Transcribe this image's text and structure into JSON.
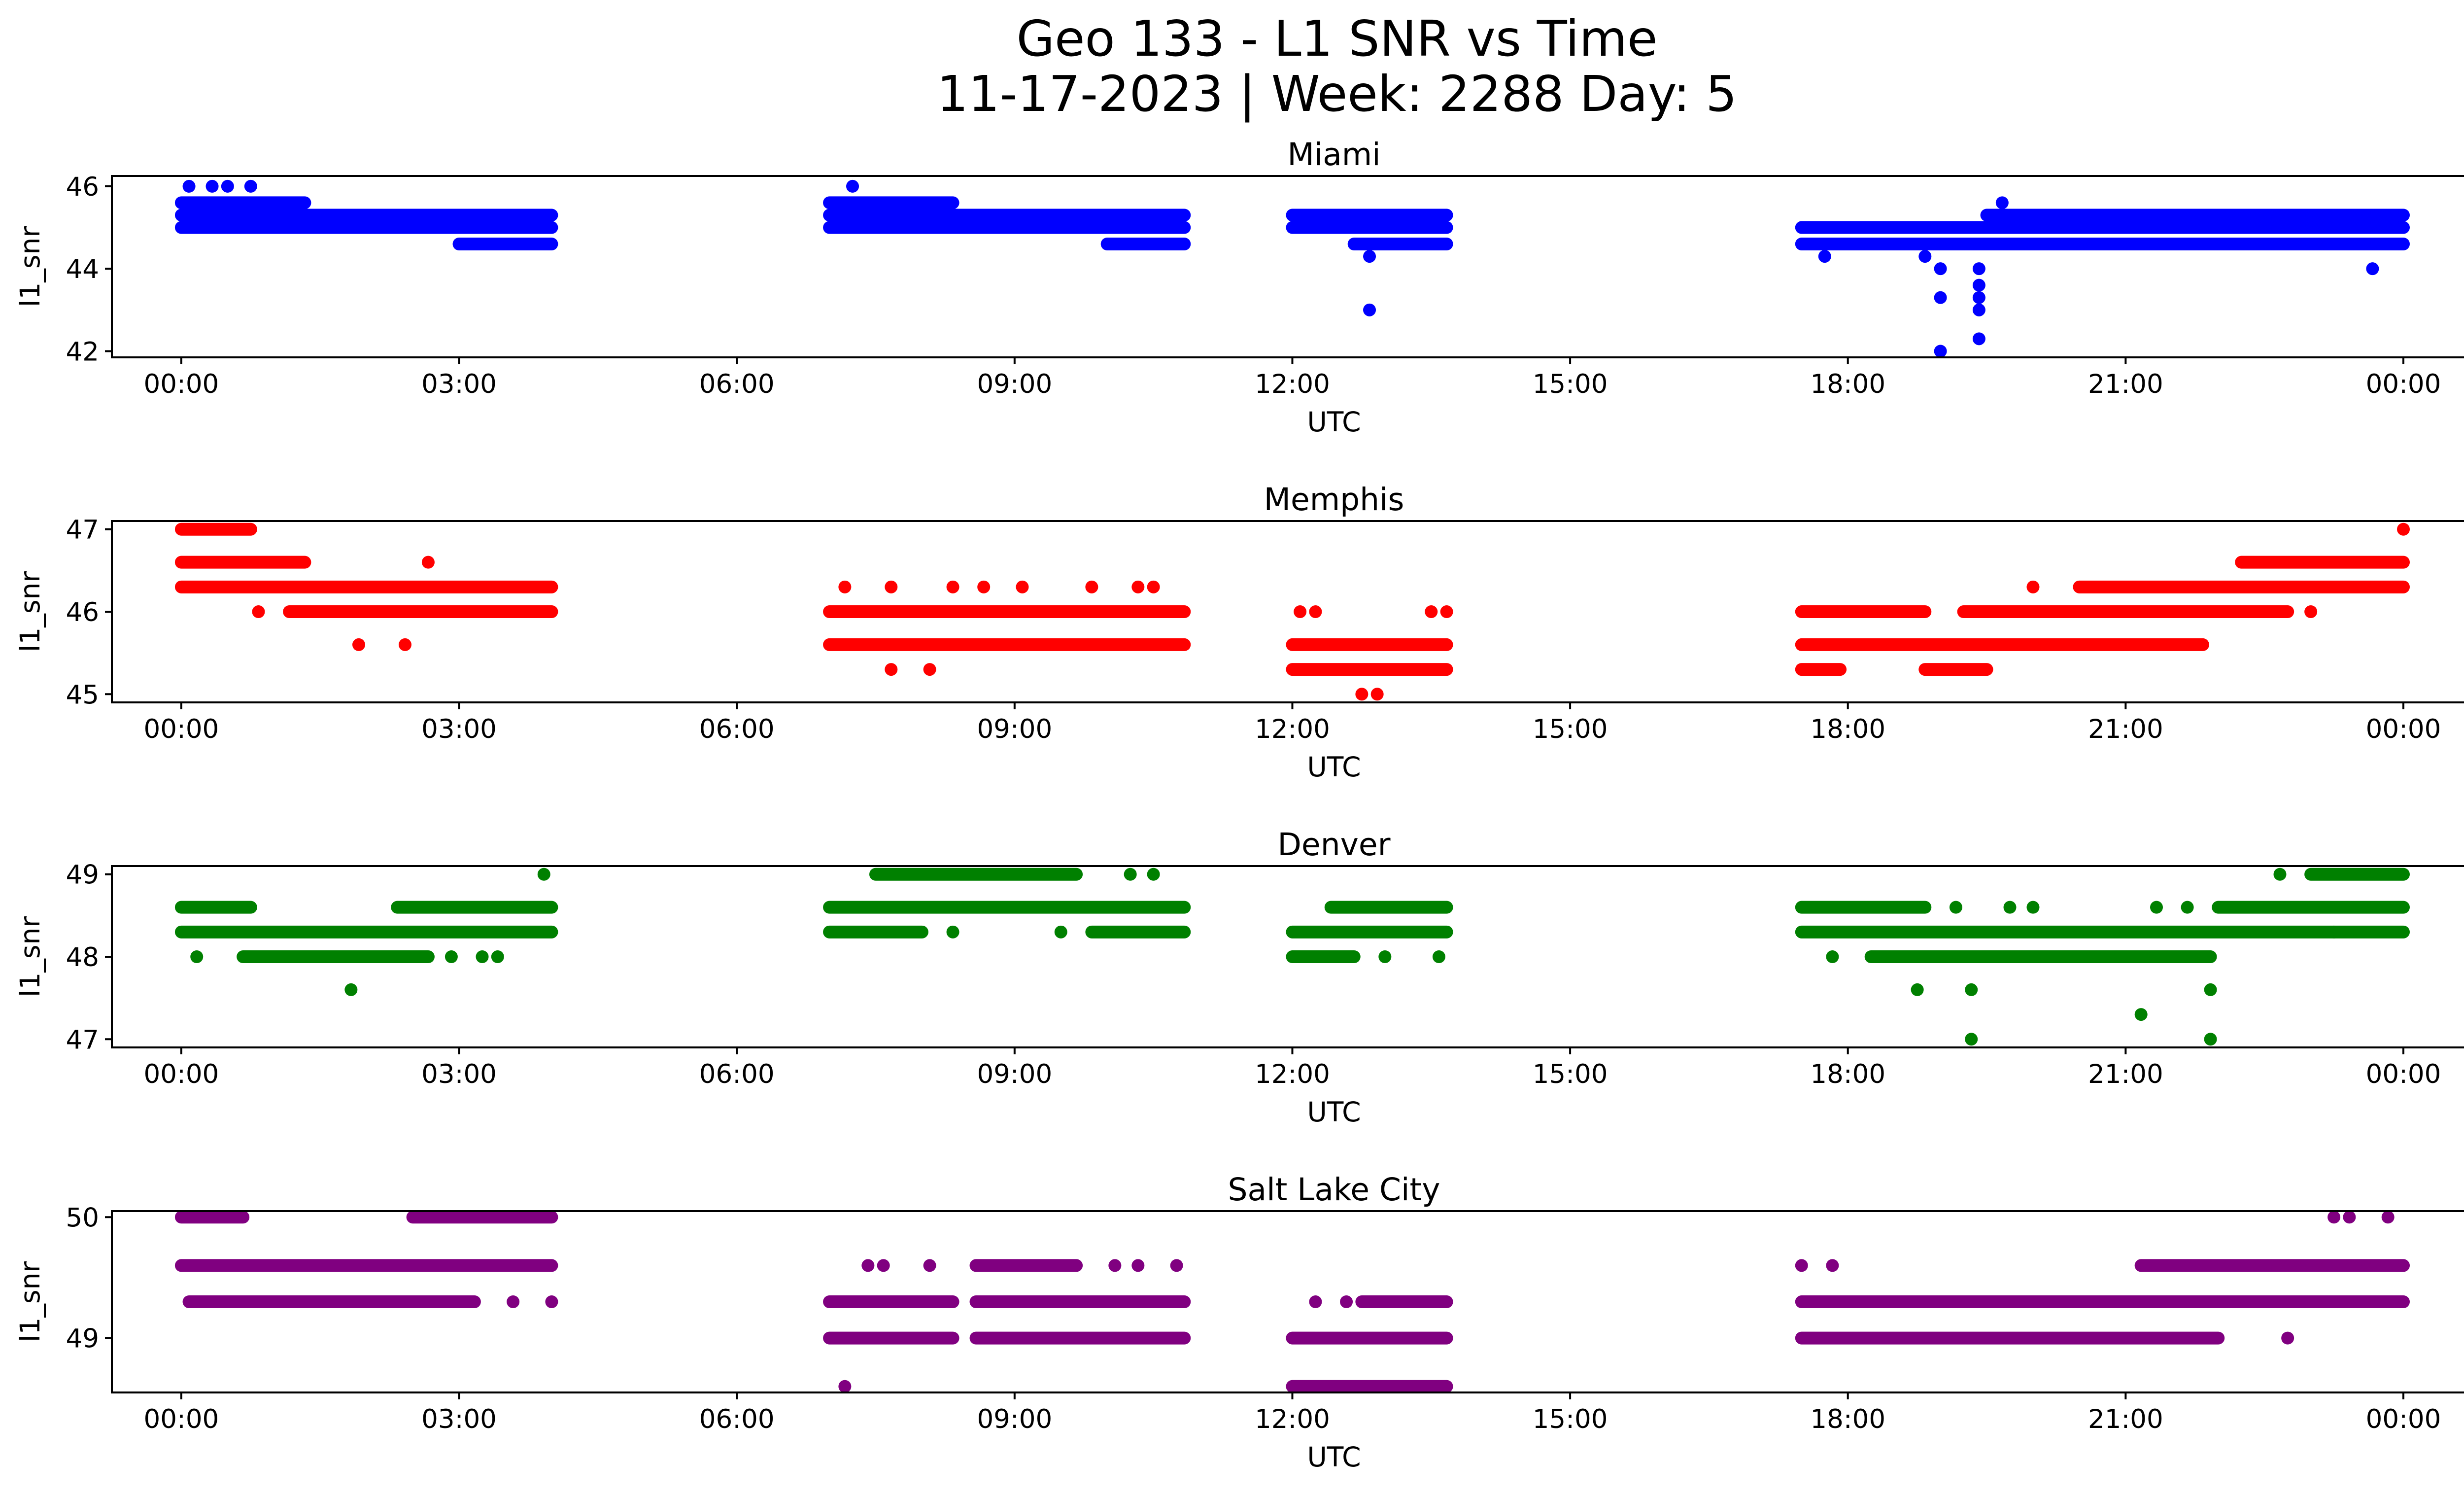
{
  "figure": {
    "title_line1": "Geo 133 - L1 SNR vs Time",
    "title_line2": "11-17-2023 | Week: 2288 Day: 5"
  },
  "chart_data": [
    {
      "type": "scatter",
      "title": "Miami",
      "xlabel": "UTC",
      "ylabel": "l1_snr",
      "color": "#0000ff",
      "xlim_hours": [
        -0.75,
        25.65
      ],
      "ylim": [
        41.85,
        46.25
      ],
      "x_ticks": [
        "00:00",
        "03:00",
        "06:00",
        "09:00",
        "12:00",
        "15:00",
        "18:00",
        "21:00",
        "00:00"
      ],
      "y_ticks": [
        42,
        44,
        46
      ],
      "bands": [
        {
          "x_start": "00:00",
          "x_end": "04:00",
          "y": 45.0
        },
        {
          "x_start": "00:00",
          "x_end": "04:00",
          "y": 45.3
        },
        {
          "x_start": "00:00",
          "x_end": "01:20",
          "y": 45.6
        },
        {
          "x_start": "03:00",
          "x_end": "04:00",
          "y": 44.6
        },
        {
          "x_start": "07:00",
          "x_end": "08:20",
          "y": 45.6
        },
        {
          "x_start": "07:00",
          "x_end": "10:50",
          "y": 45.3
        },
        {
          "x_start": "07:00",
          "x_end": "10:50",
          "y": 45.0
        },
        {
          "x_start": "10:00",
          "x_end": "10:50",
          "y": 44.6
        },
        {
          "x_start": "12:00",
          "x_end": "13:40",
          "y": 45.3
        },
        {
          "x_start": "12:00",
          "x_end": "13:40",
          "y": 45.0
        },
        {
          "x_start": "12:40",
          "x_end": "13:40",
          "y": 44.6
        },
        {
          "x_start": "17:30",
          "x_end": "23:59",
          "y": 45.0
        },
        {
          "x_start": "17:30",
          "x_end": "23:59",
          "y": 44.6
        },
        {
          "x_start": "19:30",
          "x_end": "23:59",
          "y": 45.3
        }
      ],
      "points": [
        {
          "x": "00:05",
          "y": 46.0
        },
        {
          "x": "00:20",
          "y": 46.0
        },
        {
          "x": "00:30",
          "y": 46.0
        },
        {
          "x": "00:45",
          "y": 46.0
        },
        {
          "x": "12:50",
          "y": 44.3
        },
        {
          "x": "12:50",
          "y": 43.0
        },
        {
          "x": "18:50",
          "y": 44.3
        },
        {
          "x": "19:00",
          "y": 44.0
        },
        {
          "x": "19:00",
          "y": 43.3
        },
        {
          "x": "19:00",
          "y": 42.0
        },
        {
          "x": "19:25",
          "y": 44.0
        },
        {
          "x": "19:25",
          "y": 43.6
        },
        {
          "x": "19:25",
          "y": 43.3
        },
        {
          "x": "19:25",
          "y": 43.0
        },
        {
          "x": "19:25",
          "y": 42.3
        },
        {
          "x": "19:40",
          "y": 45.6
        },
        {
          "x": "23:40",
          "y": 44.0
        },
        {
          "x": "17:45",
          "y": 44.3
        },
        {
          "x": "07:15",
          "y": 46.0
        }
      ]
    },
    {
      "type": "scatter",
      "title": "Memphis",
      "xlabel": "UTC",
      "ylabel": "l1_snr",
      "color": "#ff0000",
      "xlim_hours": [
        -0.75,
        25.65
      ],
      "ylim": [
        44.9,
        47.1
      ],
      "x_ticks": [
        "00:00",
        "03:00",
        "06:00",
        "09:00",
        "12:00",
        "15:00",
        "18:00",
        "21:00",
        "00:00"
      ],
      "y_ticks": [
        45,
        46,
        47
      ],
      "bands": [
        {
          "x_start": "00:00",
          "x_end": "00:45",
          "y": 47.0
        },
        {
          "x_start": "00:00",
          "x_end": "01:20",
          "y": 46.6
        },
        {
          "x_start": "00:00",
          "x_end": "04:00",
          "y": 46.3
        },
        {
          "x_start": "01:10",
          "x_end": "04:00",
          "y": 46.0
        },
        {
          "x_start": "07:00",
          "x_end": "10:50",
          "y": 46.0
        },
        {
          "x_start": "07:00",
          "x_end": "10:50",
          "y": 45.6
        },
        {
          "x_start": "12:00",
          "x_end": "13:40",
          "y": 45.6
        },
        {
          "x_start": "12:00",
          "x_end": "13:40",
          "y": 45.3
        },
        {
          "x_start": "17:30",
          "x_end": "21:50",
          "y": 45.6
        },
        {
          "x_start": "17:30",
          "x_end": "18:50",
          "y": 46.0
        },
        {
          "x_start": "19:15",
          "x_end": "22:45",
          "y": 46.0
        },
        {
          "x_start": "20:30",
          "x_end": "23:59",
          "y": 46.3
        },
        {
          "x_start": "22:15",
          "x_end": "23:59",
          "y": 46.6
        },
        {
          "x_start": "18:50",
          "x_end": "19:30",
          "y": 45.3
        },
        {
          "x_start": "17:30",
          "x_end": "17:55",
          "y": 45.3
        }
      ],
      "points": [
        {
          "x": "00:50",
          "y": 46.0
        },
        {
          "x": "01:55",
          "y": 45.6
        },
        {
          "x": "02:25",
          "y": 45.6
        },
        {
          "x": "02:40",
          "y": 46.6
        },
        {
          "x": "07:10",
          "y": 46.3
        },
        {
          "x": "07:40",
          "y": 46.3
        },
        {
          "x": "07:40",
          "y": 45.3
        },
        {
          "x": "08:05",
          "y": 45.3
        },
        {
          "x": "08:20",
          "y": 46.3
        },
        {
          "x": "08:40",
          "y": 46.3
        },
        {
          "x": "09:05",
          "y": 46.3
        },
        {
          "x": "09:50",
          "y": 46.3
        },
        {
          "x": "10:20",
          "y": 46.3
        },
        {
          "x": "10:30",
          "y": 46.3
        },
        {
          "x": "12:05",
          "y": 46.0
        },
        {
          "x": "12:15",
          "y": 46.0
        },
        {
          "x": "13:30",
          "y": 46.0
        },
        {
          "x": "13:40",
          "y": 46.0
        },
        {
          "x": "12:45",
          "y": 45.0
        },
        {
          "x": "12:55",
          "y": 45.0
        },
        {
          "x": "20:00",
          "y": 46.3
        },
        {
          "x": "23:00",
          "y": 46.0
        },
        {
          "x": "23:59",
          "y": 47.0
        }
      ]
    },
    {
      "type": "scatter",
      "title": "Denver",
      "xlabel": "UTC",
      "ylabel": "l1_snr",
      "color": "#008000",
      "xlim_hours": [
        -0.75,
        25.65
      ],
      "ylim": [
        46.9,
        49.1
      ],
      "x_ticks": [
        "00:00",
        "03:00",
        "06:00",
        "09:00",
        "12:00",
        "15:00",
        "18:00",
        "21:00",
        "00:00"
      ],
      "y_ticks": [
        47,
        48,
        49
      ],
      "bands": [
        {
          "x_start": "00:00",
          "x_end": "00:45",
          "y": 48.6
        },
        {
          "x_start": "00:00",
          "x_end": "04:00",
          "y": 48.3
        },
        {
          "x_start": "00:40",
          "x_end": "02:40",
          "y": 48.0
        },
        {
          "x_start": "02:20",
          "x_end": "04:00",
          "y": 48.6
        },
        {
          "x_start": "07:00",
          "x_end": "10:50",
          "y": 48.6
        },
        {
          "x_start": "07:00",
          "x_end": "08:00",
          "y": 48.3
        },
        {
          "x_start": "07:30",
          "x_end": "09:40",
          "y": 49.0
        },
        {
          "x_start": "09:50",
          "x_end": "10:50",
          "y": 48.3
        },
        {
          "x_start": "12:00",
          "x_end": "13:40",
          "y": 48.3
        },
        {
          "x_start": "12:25",
          "x_end": "13:40",
          "y": 48.6
        },
        {
          "x_start": "12:00",
          "x_end": "12:40",
          "y": 48.0
        },
        {
          "x_start": "17:30",
          "x_end": "18:50",
          "y": 48.6
        },
        {
          "x_start": "17:30",
          "x_end": "23:59",
          "y": 48.3
        },
        {
          "x_start": "18:15",
          "x_end": "21:55",
          "y": 48.0
        },
        {
          "x_start": "22:00",
          "x_end": "23:59",
          "y": 48.6
        },
        {
          "x_start": "23:00",
          "x_end": "23:59",
          "y": 49.0
        }
      ],
      "points": [
        {
          "x": "00:10",
          "y": 48.0
        },
        {
          "x": "01:50",
          "y": 47.6
        },
        {
          "x": "02:55",
          "y": 48.0
        },
        {
          "x": "03:15",
          "y": 48.0
        },
        {
          "x": "03:25",
          "y": 48.0
        },
        {
          "x": "03:55",
          "y": 49.0
        },
        {
          "x": "08:20",
          "y": 48.3
        },
        {
          "x": "09:30",
          "y": 48.3
        },
        {
          "x": "10:15",
          "y": 49.0
        },
        {
          "x": "10:30",
          "y": 49.0
        },
        {
          "x": "13:00",
          "y": 48.0
        },
        {
          "x": "13:35",
          "y": 48.0
        },
        {
          "x": "17:50",
          "y": 48.0
        },
        {
          "x": "18:45",
          "y": 47.6
        },
        {
          "x": "19:20",
          "y": 47.6
        },
        {
          "x": "19:20",
          "y": 47.0
        },
        {
          "x": "19:10",
          "y": 48.6
        },
        {
          "x": "19:45",
          "y": 48.6
        },
        {
          "x": "20:00",
          "y": 48.6
        },
        {
          "x": "21:10",
          "y": 47.3
        },
        {
          "x": "21:55",
          "y": 47.6
        },
        {
          "x": "21:55",
          "y": 47.0
        },
        {
          "x": "22:40",
          "y": 49.0
        },
        {
          "x": "23:15",
          "y": 48.3
        },
        {
          "x": "21:20",
          "y": 48.6
        },
        {
          "x": "21:40",
          "y": 48.6
        }
      ]
    },
    {
      "type": "scatter",
      "title": "Salt Lake City",
      "xlabel": "UTC",
      "ylabel": "l1_snr",
      "color": "#800080",
      "xlim_hours": [
        -0.75,
        25.65
      ],
      "ylim": [
        48.55,
        50.05
      ],
      "x_ticks": [
        "00:00",
        "03:00",
        "06:00",
        "09:00",
        "12:00",
        "15:00",
        "18:00",
        "21:00",
        "00:00"
      ],
      "y_ticks": [
        49,
        50
      ],
      "bands": [
        {
          "x_start": "00:00",
          "x_end": "04:00",
          "y": 49.6
        },
        {
          "x_start": "00:05",
          "x_end": "03:10",
          "y": 49.3
        },
        {
          "x_start": "00:00",
          "x_end": "00:40",
          "y": 50.0
        },
        {
          "x_start": "02:30",
          "x_end": "04:00",
          "y": 50.0
        },
        {
          "x_start": "07:00",
          "x_end": "08:20",
          "y": 49.3
        },
        {
          "x_start": "07:00",
          "x_end": "08:20",
          "y": 49.0
        },
        {
          "x_start": "08:35",
          "x_end": "10:50",
          "y": 49.3
        },
        {
          "x_start": "08:35",
          "x_end": "10:50",
          "y": 49.0
        },
        {
          "x_start": "08:35",
          "x_end": "09:40",
          "y": 49.6
        },
        {
          "x_start": "12:00",
          "x_end": "13:40",
          "y": 49.0
        },
        {
          "x_start": "12:00",
          "x_end": "13:40",
          "y": 48.6
        },
        {
          "x_start": "12:45",
          "x_end": "13:40",
          "y": 49.3
        },
        {
          "x_start": "17:30",
          "x_end": "23:59",
          "y": 49.3
        },
        {
          "x_start": "17:30",
          "x_end": "22:00",
          "y": 49.0
        },
        {
          "x_start": "21:10",
          "x_end": "23:59",
          "y": 49.6
        }
      ],
      "points": [
        {
          "x": "03:35",
          "y": 49.3
        },
        {
          "x": "04:00",
          "y": 49.3
        },
        {
          "x": "07:10",
          "y": 48.6
        },
        {
          "x": "07:25",
          "y": 49.6
        },
        {
          "x": "07:35",
          "y": 49.6
        },
        {
          "x": "08:05",
          "y": 49.6
        },
        {
          "x": "10:05",
          "y": 49.6
        },
        {
          "x": "10:20",
          "y": 49.6
        },
        {
          "x": "10:45",
          "y": 49.6
        },
        {
          "x": "12:15",
          "y": 49.3
        },
        {
          "x": "12:35",
          "y": 49.3
        },
        {
          "x": "17:30",
          "y": 49.6
        },
        {
          "x": "17:50",
          "y": 49.6
        },
        {
          "x": "22:45",
          "y": 49.0
        },
        {
          "x": "23:15",
          "y": 50.0
        },
        {
          "x": "23:25",
          "y": 50.0
        },
        {
          "x": "23:50",
          "y": 50.0
        }
      ]
    }
  ]
}
